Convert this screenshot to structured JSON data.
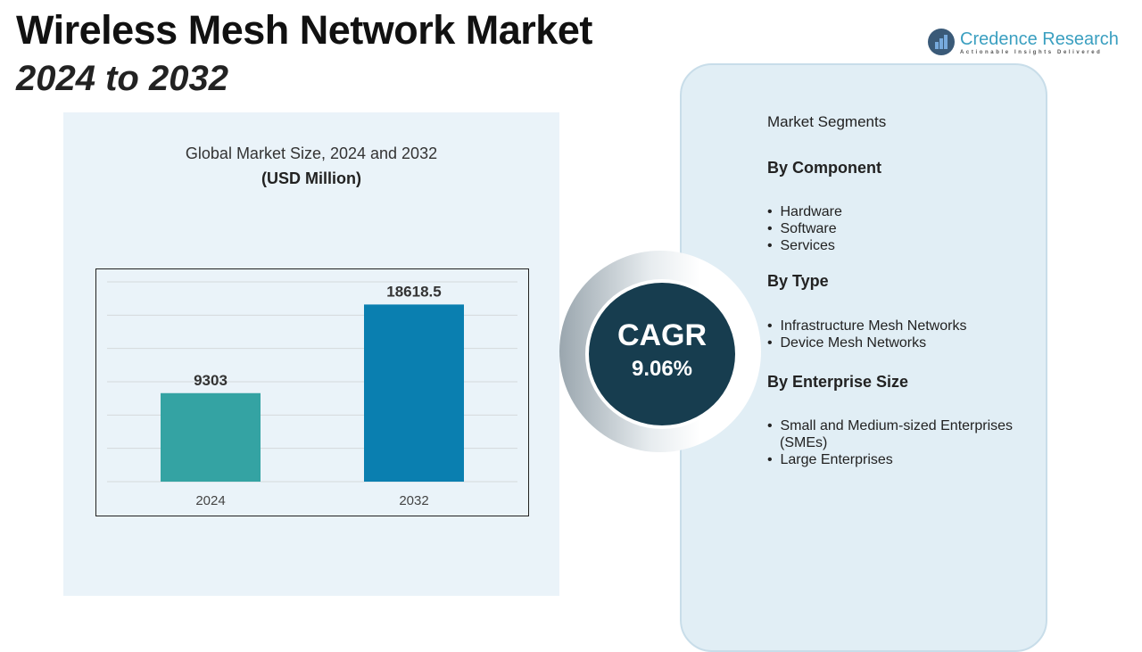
{
  "header": {
    "title": "Wireless Mesh Network Market",
    "subtitle": "2024 to 2032"
  },
  "logo": {
    "name": "Credence Research",
    "tagline": "Actionable Insights Delivered"
  },
  "cagr": {
    "label": "CAGR",
    "value": "9.06%"
  },
  "segments": {
    "title": "Market Segments",
    "groups": [
      {
        "heading": "By Component",
        "items": [
          "Hardware",
          "Software",
          "Services"
        ]
      },
      {
        "heading": "By Type",
        "items": [
          "Infrastructure Mesh Networks",
          "Device Mesh Networks"
        ]
      },
      {
        "heading": "By Enterprise Size",
        "items": [
          "Small and Medium-sized Enterprises (SMEs)",
          "Large Enterprises"
        ]
      }
    ]
  },
  "colors": {
    "bar2024": "#34a3a3",
    "bar2032": "#0a7fb0",
    "cagr_bg": "#173d4f"
  },
  "chart_data": {
    "type": "bar",
    "title": "Global Market Size, 2024 and 2032",
    "unit": "(USD Million)",
    "categories": [
      "2024",
      "2032"
    ],
    "values": [
      9303,
      18618.5
    ],
    "labels": [
      "9303",
      "18618.5"
    ],
    "ylim": [
      0,
      21000
    ],
    "grid": true
  }
}
